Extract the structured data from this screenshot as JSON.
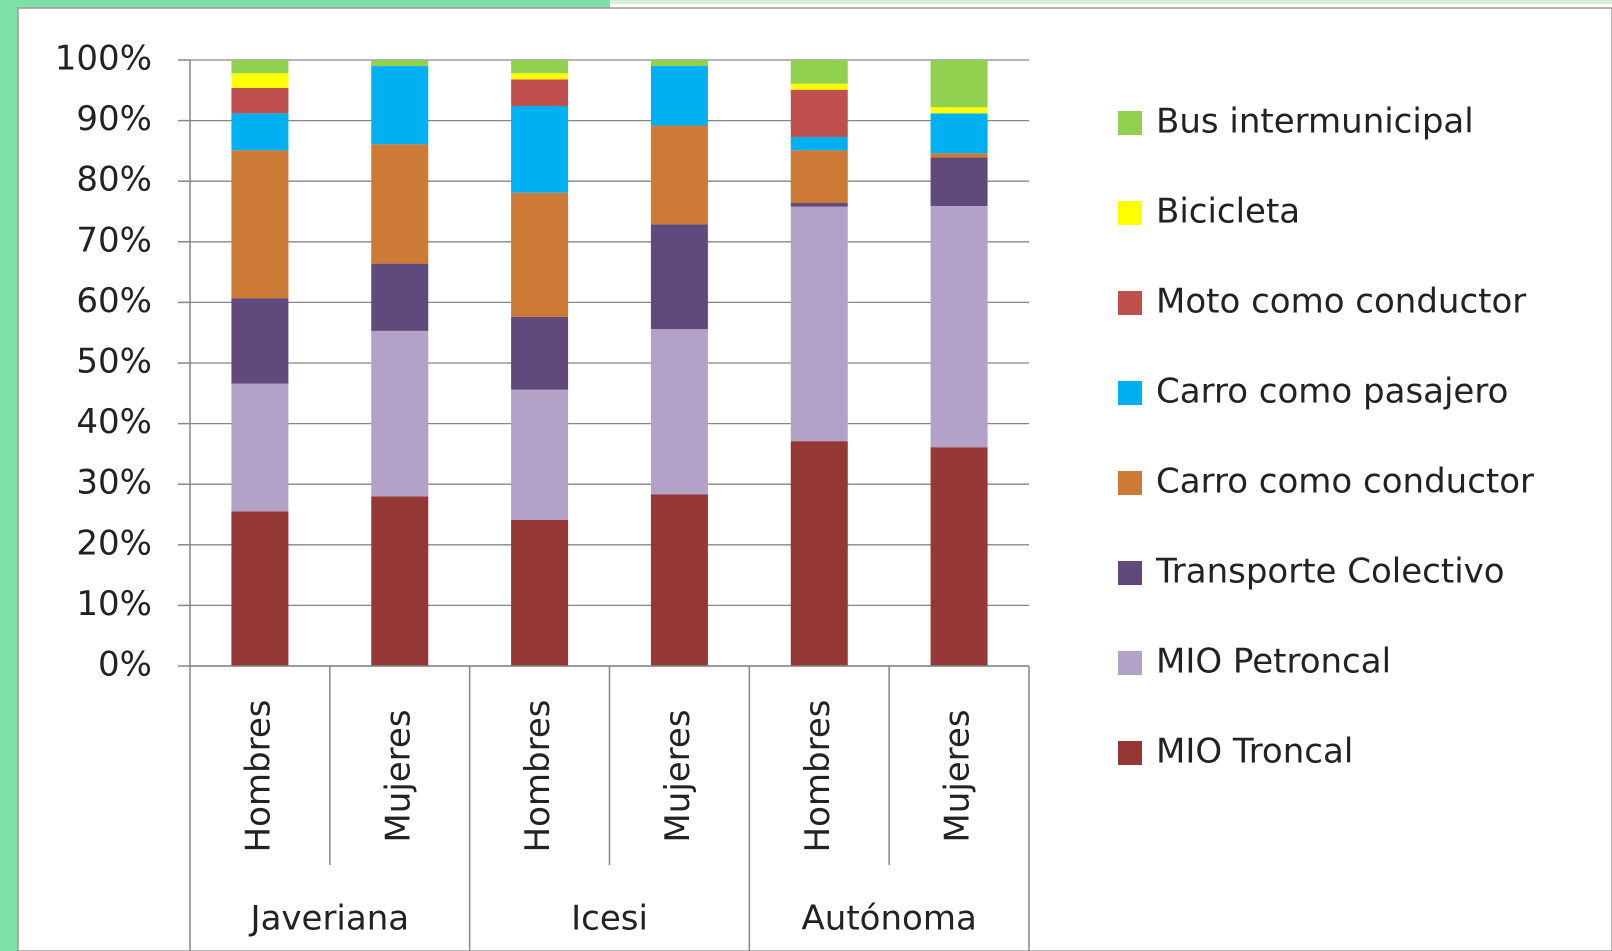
{
  "chart_data": {
    "type": "stacked-bar",
    "categories": [
      "Hombres",
      "Mujeres",
      "Hombres",
      "Mujeres",
      "Hombres",
      "Mujeres"
    ],
    "groups": [
      "Javeriana",
      "Icesi",
      "Autónoma"
    ],
    "series": [
      {
        "name": "MIO Troncal",
        "color": "#953735",
        "values": [
          25.5,
          28.0,
          24.1,
          28.3,
          37.1,
          36.1
        ]
      },
      {
        "name": "MIO Petroncal",
        "color": "#b3a2c7",
        "values": [
          21.1,
          27.3,
          21.5,
          27.3,
          38.7,
          39.8
        ]
      },
      {
        "name": "Transporte Colectivo",
        "color": "#604a7b",
        "values": [
          14.1,
          11.1,
          12.0,
          17.3,
          0.6,
          8.0
        ]
      },
      {
        "name": "Carro como conductor",
        "color": "#cc7a35",
        "values": [
          24.4,
          19.7,
          20.5,
          16.3,
          8.7,
          0.7
        ]
      },
      {
        "name": "Carro como pasajero",
        "color": "#00b0f0",
        "values": [
          6.1,
          12.9,
          14.3,
          9.8,
          2.2,
          6.6
        ]
      },
      {
        "name": "Moto como conductor",
        "color": "#c0504d",
        "values": [
          4.2,
          0,
          4.4,
          0,
          7.8,
          0
        ]
      },
      {
        "name": "Bicicleta",
        "color": "#ffff00",
        "values": [
          2.4,
          0,
          1.0,
          0,
          1.0,
          1.0
        ]
      },
      {
        "name": "Bus intermunicipal",
        "color": "#92d050",
        "values": [
          2.2,
          1.0,
          2.2,
          1.0,
          3.9,
          7.8
        ]
      }
    ],
    "ylim": [
      0,
      100
    ],
    "yticks": [
      {
        "value": 0,
        "label": "0%"
      },
      {
        "value": 10,
        "label": "10%"
      },
      {
        "value": 20,
        "label": "20%"
      },
      {
        "value": 30,
        "label": "30%"
      },
      {
        "value": 40,
        "label": "40%"
      },
      {
        "value": 50,
        "label": "50%"
      },
      {
        "value": 60,
        "label": "60%"
      },
      {
        "value": 70,
        "label": "70%"
      },
      {
        "value": 80,
        "label": "80%"
      },
      {
        "value": 90,
        "label": "90%"
      },
      {
        "value": 100,
        "label": "100%"
      }
    ],
    "grid": true,
    "legend": "right"
  }
}
